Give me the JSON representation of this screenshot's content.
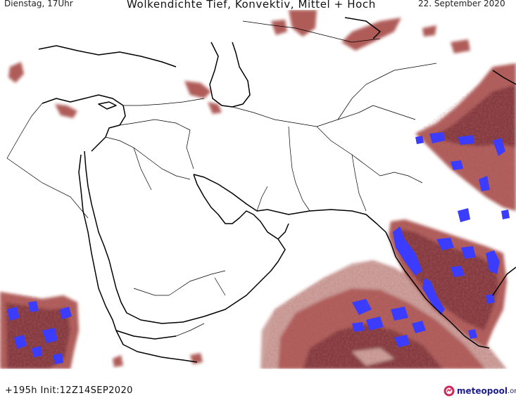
{
  "header": {
    "valid_day": "Dienstag, 17Uhr",
    "title": "Wolkendichte  Tief, Konvektiv, Mittel + Hoch",
    "date": "22. September 2020"
  },
  "footer": {
    "run_info": "+195h  Init:12Z14SEP2020"
  },
  "branding": {
    "logo_text": "meteopool",
    "logo_suffix": ".org",
    "logo_color": "#1e1e8c"
  },
  "legend_colors": {
    "cloud_light": "#d9b0aa",
    "cloud_medium": "#a9504c",
    "cloud_dense": "#7a2a2e",
    "convective": "#3c3cff"
  }
}
